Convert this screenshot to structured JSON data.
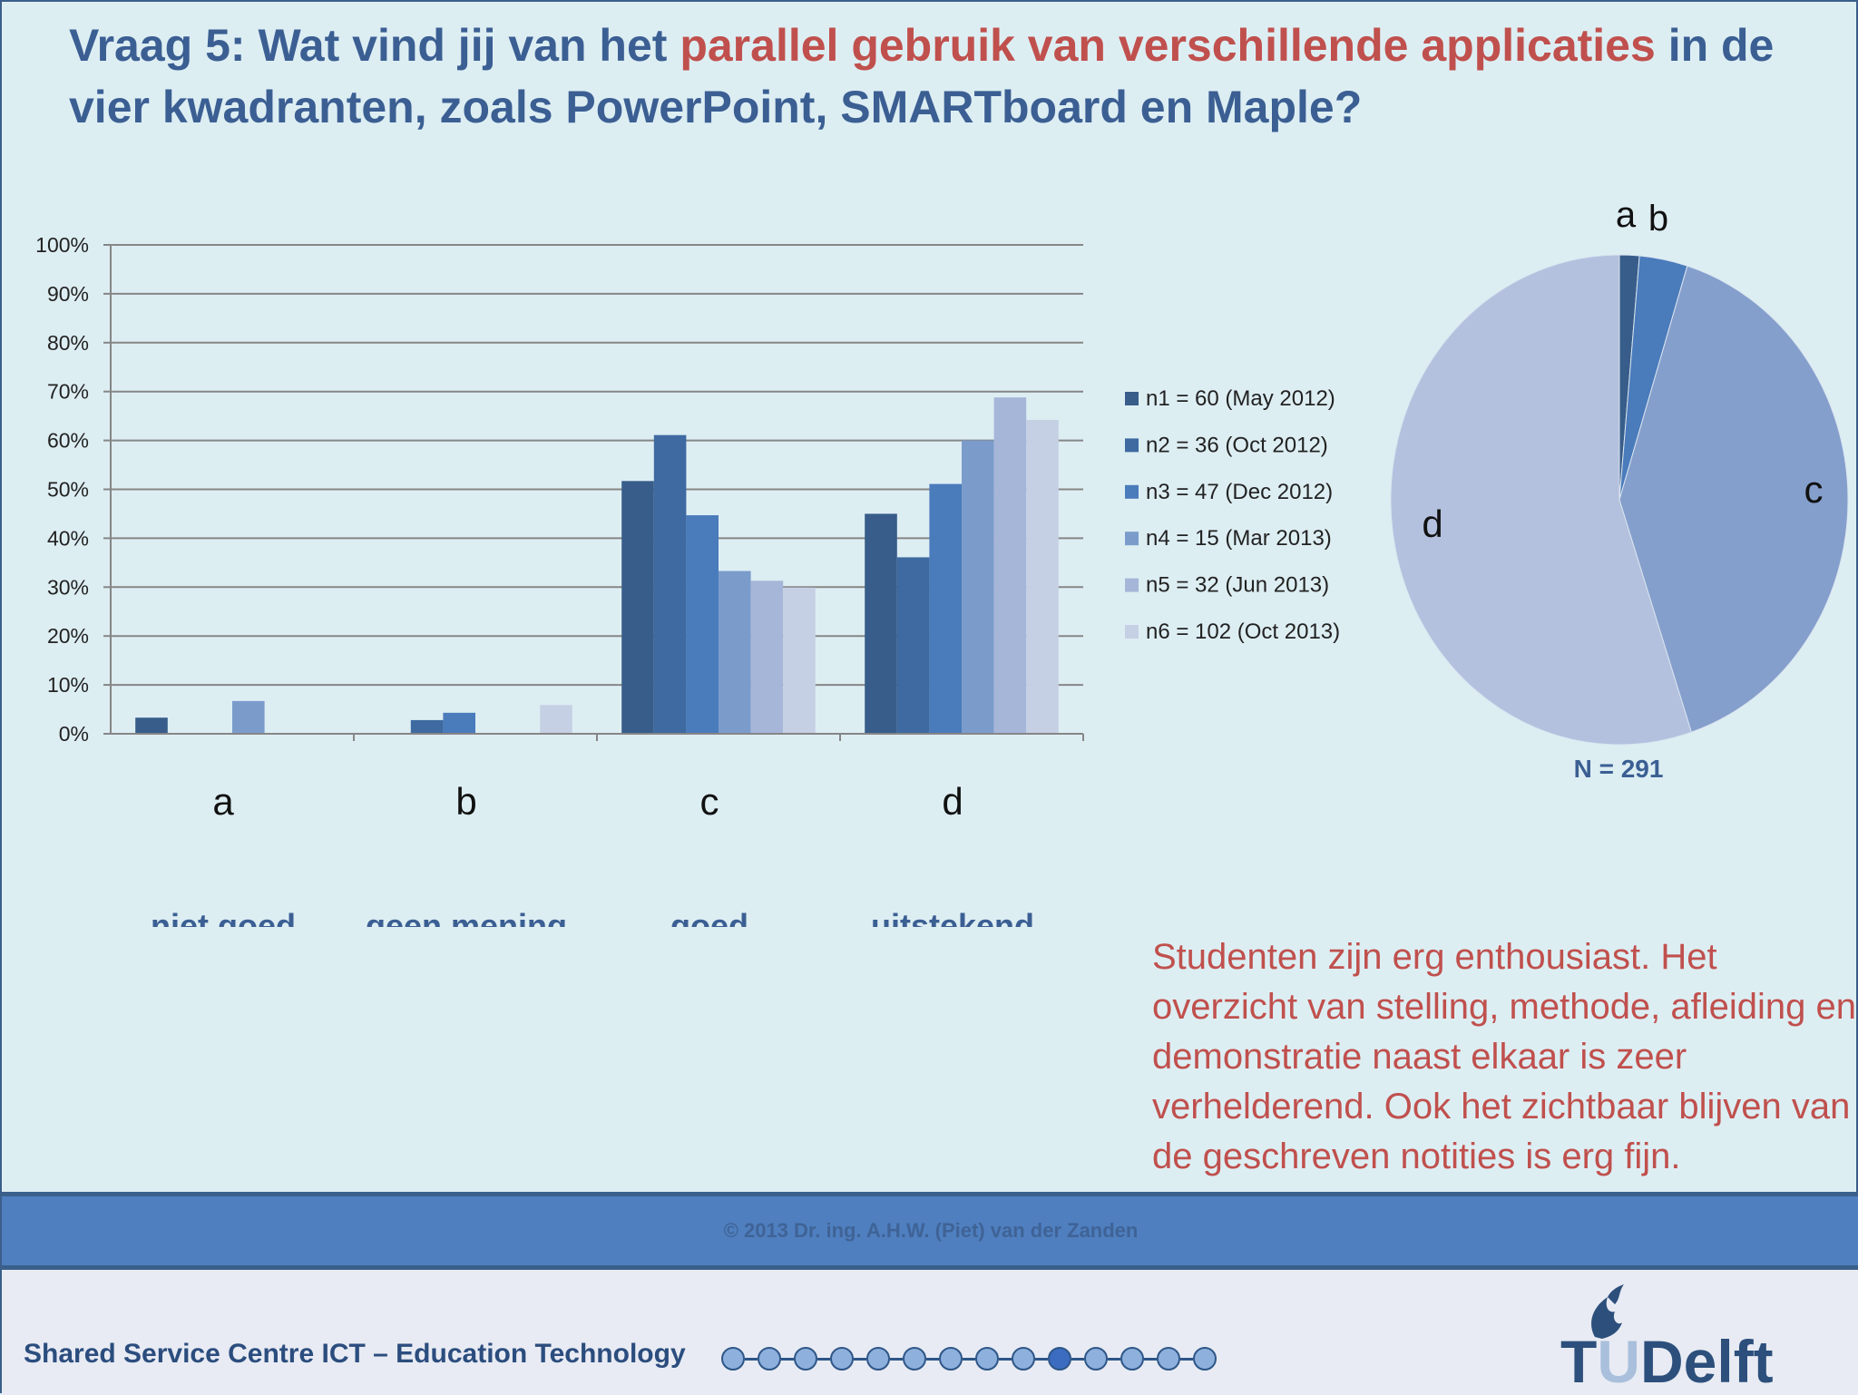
{
  "slide": {
    "title_parts": {
      "prefix": "Vraag 5: Wat vind jij van het ",
      "highlight": "parallel gebruik van verschillende applicaties",
      "suffix": " in de vier kwadranten, zoals PowerPoint, SMARTboard en Maple?"
    },
    "note": "Studenten zijn erg enthousiast. Het overzicht van stelling, methode, afleiding en demonstratie naast elkaar is zeer verhelderend. Ook het zichtbaar blijven van de geschreven notities is erg fijn.",
    "copyright": "© 2013  Dr. ing. A.H.W. (Piet) van der Zanden",
    "organization": "Shared Service Centre ICT – Education Technology",
    "logo_text": "TUDelft",
    "pagination": {
      "total": 14,
      "active": 10
    }
  },
  "chart_data": [
    {
      "type": "bar",
      "categories": [
        "a",
        "b",
        "c",
        "d"
      ],
      "category_descriptions": [
        "niet goed",
        "geen mening",
        "goed",
        "uitstekend"
      ],
      "ylim": [
        0,
        100
      ],
      "yticks": [
        "0%",
        "10%",
        "20%",
        "30%",
        "40%",
        "50%",
        "60%",
        "70%",
        "80%",
        "90%",
        "100%"
      ],
      "grid": true,
      "legend_position": "right",
      "series": [
        {
          "name": "n1 = 60 (May 2012)",
          "values": [
            3.3,
            0,
            51.7,
            45
          ],
          "color": "#385d8a"
        },
        {
          "name": "n2 = 36 (Oct 2012)",
          "values": [
            0,
            2.8,
            61.1,
            36.1
          ],
          "color": "#3e6aa1"
        },
        {
          "name": "n3 = 47 (Dec 2012)",
          "values": [
            0,
            4.3,
            44.7,
            51.1
          ],
          "color": "#4a7bbb"
        },
        {
          "name": "n4 = 15 (Mar 2013)",
          "values": [
            6.7,
            0,
            33.3,
            60
          ],
          "color": "#7b9ccb"
        },
        {
          "name": "n5 = 32 (Jun 2013)",
          "values": [
            0,
            0,
            31.3,
            68.8
          ],
          "color": "#a6b6d8"
        },
        {
          "name": "n6 = 102 (Oct 2013)",
          "values": [
            0,
            5.9,
            29.9,
            64.2
          ],
          "color": "#c6d0e4"
        }
      ]
    },
    {
      "type": "pie",
      "categories": [
        "a",
        "b",
        "c",
        "d"
      ],
      "values": [
        1.4,
        3.4,
        40.1,
        55.1
      ],
      "colors": [
        "#385d8a",
        "#4a7bbb",
        "#859fcc",
        "#b4c1de"
      ],
      "caption": "N = 291"
    }
  ]
}
